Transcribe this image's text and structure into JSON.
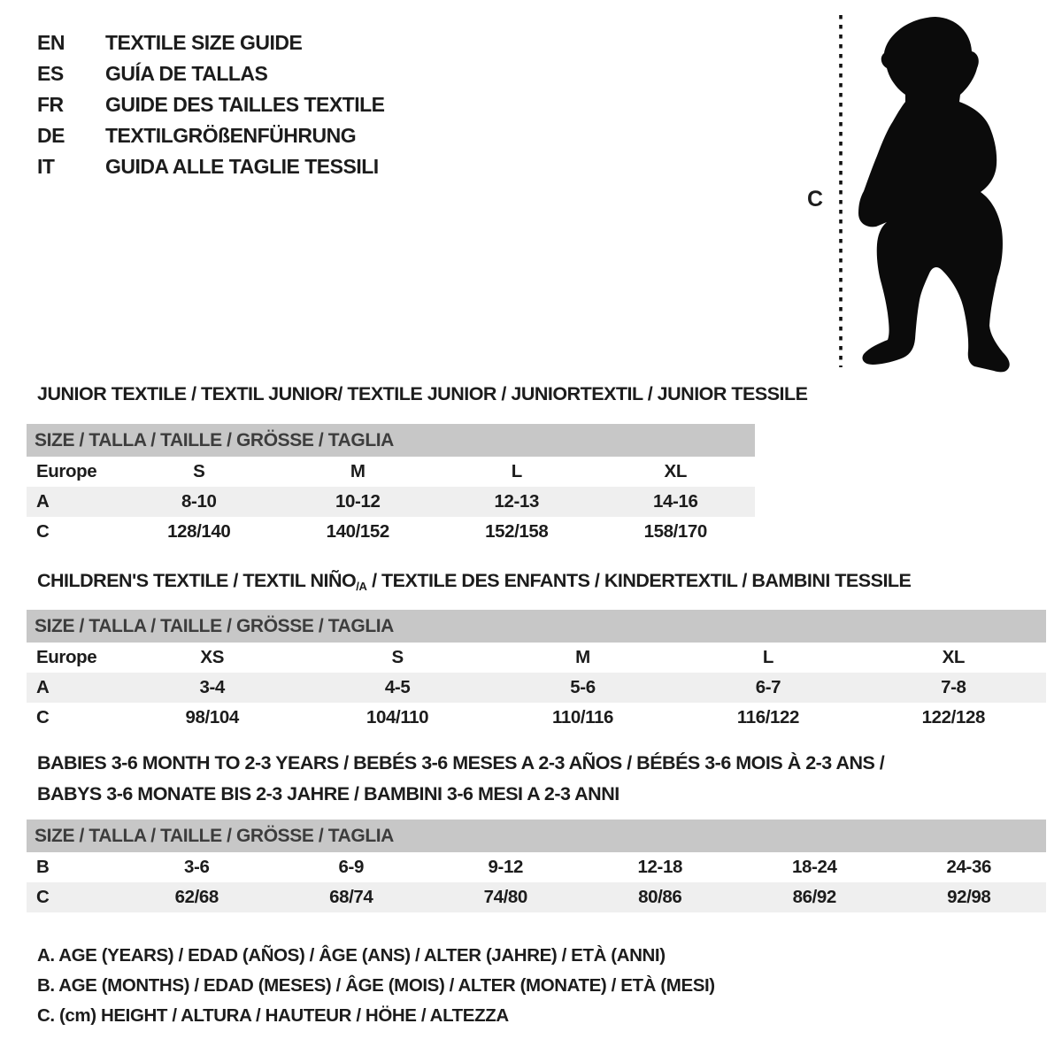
{
  "language_list": [
    {
      "code": "EN",
      "label": "TEXTILE SIZE GUIDE"
    },
    {
      "code": "ES",
      "label": "GUÍA DE TALLAS"
    },
    {
      "code": "FR",
      "label": "GUIDE DES TAILLES TEXTILE"
    },
    {
      "code": "DE",
      "label": "TEXTILGRÖßENFÜHRUNG"
    },
    {
      "code": "IT",
      "label": "GUIDA ALLE TAGLIE TESSILI"
    }
  ],
  "figure": {
    "icon": "toddler-silhouette",
    "measure_label": "C"
  },
  "colors": {
    "header_bar": "#c7c7c7",
    "row_shade": "#efefef",
    "text": "#1c1c1c",
    "header_text": "#3d3d3d"
  },
  "tables": [
    {
      "title": "JUNIOR TEXTILE / TEXTIL JUNIOR/ TEXTILE JUNIOR / JUNIORTEXTIL / JUNIOR TESSILE",
      "header": "SIZE / TALLA / TAILLE / GRÖSSE / TAGLIA",
      "rows": [
        {
          "label": "Europe",
          "cells": [
            "S",
            "M",
            "L",
            "XL"
          ]
        },
        {
          "label": "A",
          "cells": [
            "8-10",
            "10-12",
            "12-13",
            "14-16"
          ]
        },
        {
          "label": "C",
          "cells": [
            "128/140",
            "140/152",
            "152/158",
            "158/170"
          ]
        }
      ]
    },
    {
      "title_pre": "CHILDREN'S TEXTILE / TEXTIL NIÑO",
      "title_sub": "/A",
      "title_post": " / TEXTILE DES ENFANTS / KINDERTEXTIL / BAMBINI TESSILE",
      "header": "SIZE / TALLA / TAILLE / GRÖSSE / TAGLIA",
      "rows": [
        {
          "label": "Europe",
          "cells": [
            "XS",
            "S",
            "M",
            "L",
            "XL"
          ]
        },
        {
          "label": "A",
          "cells": [
            "3-4",
            "4-5",
            "5-6",
            "6-7",
            "7-8"
          ]
        },
        {
          "label": "C",
          "cells": [
            "98/104",
            "104/110",
            "110/116",
            "116/122",
            "122/128"
          ]
        }
      ]
    },
    {
      "title_line1": "BABIES 3-6 MONTH TO 2-3 YEARS / BEBÉS 3-6 MESES A 2-3 AÑOS / BÉBÉS 3-6 MOIS À 2-3 ANS /",
      "title_line2": "BABYS 3-6 MONATE BIS 2-3 JAHRE / BAMBINI 3-6 MESI A 2-3 ANNI",
      "header": "SIZE / TALLA / TAILLE / GRÖSSE / TAGLIA",
      "rows": [
        {
          "label": "B",
          "cells": [
            "3-6",
            "6-9",
            "9-12",
            "12-18",
            "18-24",
            "24-36"
          ]
        },
        {
          "label": "C",
          "cells": [
            "62/68",
            "68/74",
            "74/80",
            "80/86",
            "86/92",
            "92/98"
          ]
        }
      ]
    }
  ],
  "legend": [
    "A. AGE (YEARS) / EDAD (AÑOS) / ÂGE (ANS) / ALTER (JAHRE) / ETÀ (ANNI)",
    "B. AGE (MONTHS) / EDAD (MESES) / ÂGE (MOIS) / ALTER (MONATE) / ETÀ (MESI)",
    "C. (cm) HEIGHT / ALTURA / HAUTEUR / HÖHE / ALTEZZA"
  ]
}
